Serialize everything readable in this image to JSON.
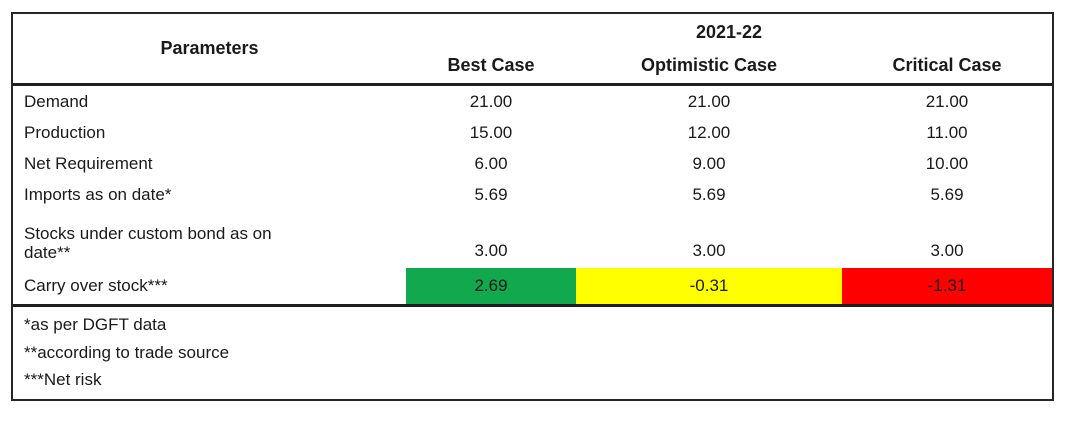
{
  "table": {
    "header": {
      "parameters": "Parameters",
      "year": "2021-22",
      "cases": [
        "Best Case",
        "Optimistic Case",
        "Critical Case"
      ]
    },
    "rows": [
      {
        "label": "Demand",
        "values": [
          "21.00",
          "21.00",
          "21.00"
        ]
      },
      {
        "label": "Production",
        "values": [
          "15.00",
          "12.00",
          "11.00"
        ]
      },
      {
        "label": "Net Requirement",
        "values": [
          "6.00",
          "9.00",
          "10.00"
        ]
      },
      {
        "label": "Imports as on date*",
        "values": [
          "5.69",
          "5.69",
          "5.69"
        ]
      },
      {
        "label_lines": [
          "Stocks under custom bond as on",
          "date**"
        ],
        "values": [
          "3.00",
          "3.00",
          "3.00"
        ]
      },
      {
        "label": "Carry over stock***",
        "values": [
          "2.69",
          "-0.31",
          "-1.31"
        ],
        "highlights": [
          "green",
          "yellow",
          "red"
        ]
      }
    ],
    "footnotes": [
      "*as per DGFT data",
      "**according to trade source",
      "***Net risk"
    ],
    "colors": {
      "green": "#12A84D",
      "yellow": "#FFFF00",
      "red": "#FE0000"
    }
  },
  "chart_data": {
    "type": "table",
    "title": "2021-22",
    "columns": [
      "Parameters",
      "Best Case",
      "Optimistic Case",
      "Critical Case"
    ],
    "rows": [
      [
        "Demand",
        21.0,
        21.0,
        21.0
      ],
      [
        "Production",
        15.0,
        12.0,
        11.0
      ],
      [
        "Net Requirement",
        6.0,
        9.0,
        10.0
      ],
      [
        "Imports as on date*",
        5.69,
        5.69,
        5.69
      ],
      [
        "Stocks under custom bond as on date**",
        3.0,
        3.0,
        3.0
      ],
      [
        "Carry over stock***",
        2.69,
        -0.31,
        -1.31
      ]
    ],
    "highlighted_row": "Carry over stock***",
    "highlight_colors": [
      "#12A84D",
      "#FFFF00",
      "#FE0000"
    ],
    "footnotes": [
      "*as per DGFT data",
      "**according to trade source",
      "***Net risk"
    ]
  }
}
